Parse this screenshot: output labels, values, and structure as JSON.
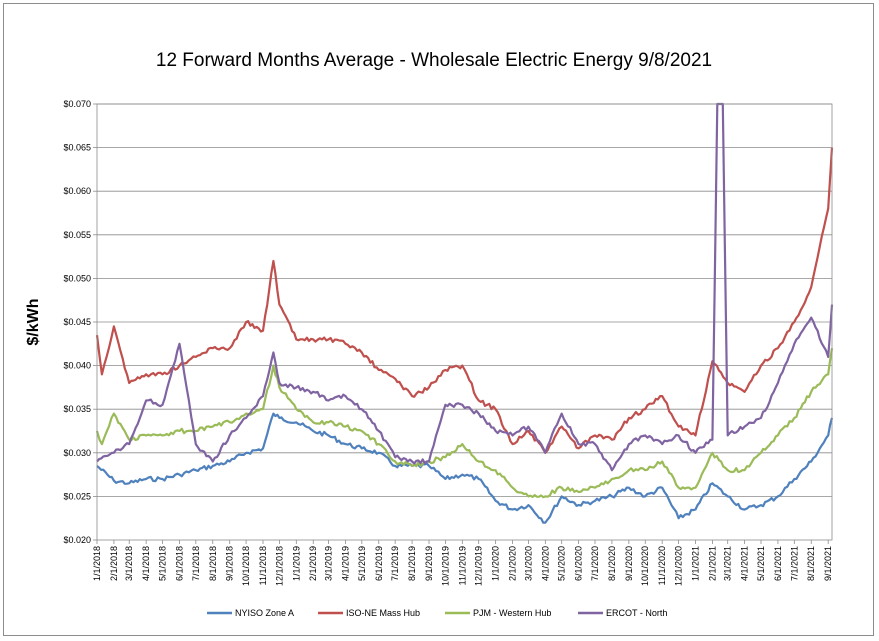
{
  "chart_data": {
    "type": "line",
    "title": "12 Forward Months Average - Wholesale Electric Energy 9/8/2021",
    "ylabel": "$/kWh",
    "xlabel": "",
    "ylim": [
      0.02,
      0.07
    ],
    "ytick_labels": [
      "$0.020",
      "$0.025",
      "$0.030",
      "$0.035",
      "$0.040",
      "$0.045",
      "$0.050",
      "$0.055",
      "$0.060",
      "$0.065",
      "$0.070"
    ],
    "x_tick_labels": [
      "1/1/2018",
      "2/1/2018",
      "3/1/2018",
      "4/1/2018",
      "5/1/2018",
      "6/1/2018",
      "7/1/2018",
      "8/1/2018",
      "9/1/2018",
      "10/1/2018",
      "11/1/2018",
      "12/1/2018",
      "1/1/2019",
      "2/1/2019",
      "3/1/2019",
      "4/1/2019",
      "5/1/2019",
      "6/1/2019",
      "7/1/2019",
      "8/1/2019",
      "9/1/2019",
      "10/1/2019",
      "11/1/2019",
      "12/1/2019",
      "1/1/2020",
      "2/1/2020",
      "3/1/2020",
      "4/1/2020",
      "5/1/2020",
      "6/1/2020",
      "7/1/2020",
      "8/1/2020",
      "9/1/2020",
      "10/1/2020",
      "11/1/2020",
      "12/1/2020",
      "1/1/2021",
      "2/1/2021",
      "3/1/2021",
      "4/1/2021",
      "5/1/2021",
      "6/1/2021",
      "7/1/2021",
      "8/1/2021",
      "9/1/2021"
    ],
    "x_range": [
      "1/1/2018",
      "9/8/2021"
    ],
    "grid": "horizontal",
    "legend_position": "bottom",
    "series": [
      {
        "name": "NYISO Zone A",
        "color": "#4f81bd",
        "x": [
          "1/1/2018",
          "2/1/2018",
          "3/1/2018",
          "4/1/2018",
          "5/1/2018",
          "6/1/2018",
          "7/1/2018",
          "8/1/2018",
          "9/1/2018",
          "10/1/2018",
          "11/1/2018",
          "11/20/2018",
          "12/1/2018",
          "1/1/2019",
          "2/1/2019",
          "3/1/2019",
          "4/1/2019",
          "5/1/2019",
          "6/1/2019",
          "7/1/2019",
          "8/1/2019",
          "9/1/2019",
          "10/1/2019",
          "11/1/2019",
          "12/1/2019",
          "1/1/2020",
          "2/1/2020",
          "3/1/2020",
          "4/1/2020",
          "5/1/2020",
          "6/1/2020",
          "7/1/2020",
          "8/1/2020",
          "9/1/2020",
          "10/1/2020",
          "11/1/2020",
          "12/1/2020",
          "1/1/2021",
          "2/1/2021",
          "3/1/2021",
          "4/1/2021",
          "5/1/2021",
          "6/1/2021",
          "7/1/2021",
          "8/1/2021",
          "9/1/2021",
          "9/8/2021"
        ],
        "values": [
          0.0285,
          0.0268,
          0.0265,
          0.027,
          0.027,
          0.0275,
          0.028,
          0.0285,
          0.029,
          0.03,
          0.0305,
          0.0345,
          0.034,
          0.0335,
          0.0325,
          0.032,
          0.031,
          0.0305,
          0.03,
          0.0285,
          0.0285,
          0.0285,
          0.027,
          0.0275,
          0.027,
          0.0245,
          0.0235,
          0.024,
          0.022,
          0.025,
          0.024,
          0.0245,
          0.025,
          0.026,
          0.025,
          0.026,
          0.0225,
          0.0235,
          0.0265,
          0.025,
          0.0235,
          0.024,
          0.025,
          0.027,
          0.029,
          0.032,
          0.034
        ]
      },
      {
        "name": "ISO-NE Mass Hub",
        "color": "#c0504d",
        "x": [
          "1/1/2018",
          "1/10/2018",
          "2/1/2018",
          "3/1/2018",
          "4/1/2018",
          "5/1/2018",
          "6/1/2018",
          "7/1/2018",
          "8/1/2018",
          "9/1/2018",
          "10/1/2018",
          "11/1/2018",
          "11/20/2018",
          "12/1/2018",
          "1/1/2019",
          "2/1/2019",
          "3/1/2019",
          "4/1/2019",
          "5/1/2019",
          "6/1/2019",
          "7/1/2019",
          "8/1/2019",
          "9/1/2019",
          "10/1/2019",
          "11/1/2019",
          "12/1/2019",
          "1/1/2020",
          "2/1/2020",
          "3/1/2020",
          "4/1/2020",
          "5/1/2020",
          "6/1/2020",
          "7/1/2020",
          "8/1/2020",
          "9/1/2020",
          "10/1/2020",
          "11/1/2020",
          "12/1/2020",
          "1/1/2021",
          "2/1/2021",
          "3/1/2021",
          "4/1/2021",
          "5/1/2021",
          "6/1/2021",
          "7/1/2021",
          "8/1/2021",
          "9/1/2021",
          "9/8/2021"
        ],
        "values": [
          0.0435,
          0.039,
          0.0445,
          0.038,
          0.039,
          0.039,
          0.04,
          0.041,
          0.042,
          0.042,
          0.045,
          0.044,
          0.052,
          0.047,
          0.043,
          0.043,
          0.043,
          0.0425,
          0.0415,
          0.0395,
          0.0385,
          0.0365,
          0.0375,
          0.0395,
          0.04,
          0.036,
          0.035,
          0.031,
          0.0325,
          0.03,
          0.033,
          0.0305,
          0.032,
          0.0315,
          0.034,
          0.035,
          0.0365,
          0.033,
          0.032,
          0.0405,
          0.038,
          0.037,
          0.04,
          0.042,
          0.045,
          0.049,
          0.058,
          0.065
        ]
      },
      {
        "name": "PJM - Western Hub",
        "color": "#9bbb59",
        "x": [
          "1/1/2018",
          "1/10/2018",
          "2/1/2018",
          "3/1/2018",
          "4/1/2018",
          "5/1/2018",
          "6/1/2018",
          "7/1/2018",
          "8/1/2018",
          "9/1/2018",
          "10/1/2018",
          "11/1/2018",
          "11/20/2018",
          "12/1/2018",
          "1/1/2019",
          "2/1/2019",
          "3/1/2019",
          "4/1/2019",
          "5/1/2019",
          "6/1/2019",
          "7/1/2019",
          "8/1/2019",
          "9/1/2019",
          "10/1/2019",
          "11/1/2019",
          "12/1/2019",
          "1/1/2020",
          "2/1/2020",
          "3/1/2020",
          "4/1/2020",
          "5/1/2020",
          "6/1/2020",
          "7/1/2020",
          "8/1/2020",
          "9/1/2020",
          "10/1/2020",
          "11/1/2020",
          "12/1/2020",
          "1/1/2021",
          "2/1/2021",
          "3/1/2021",
          "4/1/2021",
          "5/1/2021",
          "6/1/2021",
          "7/1/2021",
          "8/1/2021",
          "9/1/2021",
          "9/8/2021"
        ],
        "values": [
          0.0325,
          0.031,
          0.0345,
          0.0315,
          0.032,
          0.032,
          0.0325,
          0.0325,
          0.033,
          0.0335,
          0.0345,
          0.035,
          0.04,
          0.0375,
          0.035,
          0.0335,
          0.0335,
          0.033,
          0.0325,
          0.031,
          0.029,
          0.0285,
          0.029,
          0.0295,
          0.031,
          0.029,
          0.028,
          0.026,
          0.025,
          0.025,
          0.026,
          0.0255,
          0.026,
          0.027,
          0.028,
          0.028,
          0.029,
          0.026,
          0.026,
          0.03,
          0.028,
          0.028,
          0.03,
          0.032,
          0.034,
          0.037,
          0.039,
          0.042
        ]
      },
      {
        "name": "ERCOT - North",
        "color": "#8064a2",
        "x": [
          "1/1/2018",
          "2/1/2018",
          "3/1/2018",
          "4/1/2018",
          "5/1/2018",
          "6/1/2018",
          "7/1/2018",
          "8/1/2018",
          "9/1/2018",
          "10/1/2018",
          "11/1/2018",
          "11/20/2018",
          "12/1/2018",
          "1/1/2019",
          "2/1/2019",
          "3/1/2019",
          "4/1/2019",
          "5/1/2019",
          "6/1/2019",
          "7/1/2019",
          "8/1/2019",
          "9/1/2019",
          "10/1/2019",
          "11/1/2019",
          "12/1/2019",
          "1/1/2020",
          "2/1/2020",
          "3/1/2020",
          "4/1/2020",
          "5/1/2020",
          "6/1/2020",
          "7/1/2020",
          "8/1/2020",
          "9/1/2020",
          "10/1/2020",
          "11/1/2020",
          "12/1/2020",
          "1/1/2021",
          "2/1/2021",
          "2/10/2021",
          "2/20/2021",
          "3/1/2021",
          "4/1/2021",
          "5/1/2021",
          "6/1/2021",
          "7/1/2021",
          "8/1/2021",
          "9/1/2021",
          "9/8/2021"
        ],
        "values": [
          0.029,
          0.03,
          0.031,
          0.036,
          0.0355,
          0.0425,
          0.031,
          0.029,
          0.032,
          0.034,
          0.0365,
          0.0415,
          0.038,
          0.0375,
          0.037,
          0.036,
          0.0365,
          0.035,
          0.0325,
          0.0295,
          0.029,
          0.029,
          0.0355,
          0.0355,
          0.0345,
          0.0325,
          0.032,
          0.033,
          0.03,
          0.0345,
          0.031,
          0.031,
          0.028,
          0.031,
          0.032,
          0.031,
          0.032,
          0.03,
          0.0315,
          0.07,
          0.07,
          0.032,
          0.033,
          0.034,
          0.038,
          0.0425,
          0.0455,
          0.041,
          0.047
        ]
      }
    ]
  }
}
